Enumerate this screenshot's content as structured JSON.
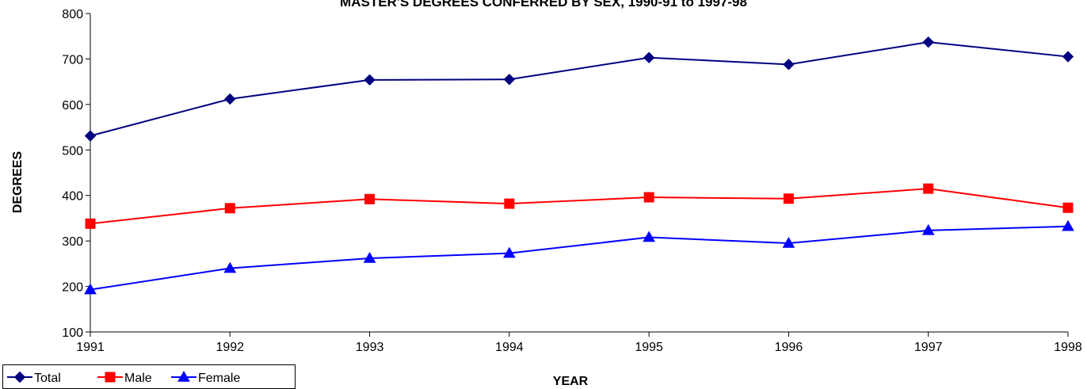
{
  "chart_data": {
    "type": "line",
    "title": "MASTER'S DEGREES CONFERRED BY SEX, 1990-91 to 1997-98",
    "xlabel": "YEAR",
    "ylabel": "DEGREES",
    "x": [
      1991,
      1992,
      1993,
      1994,
      1995,
      1996,
      1997,
      1998
    ],
    "ylim": [
      100,
      800
    ],
    "yticks": [
      100,
      200,
      300,
      400,
      500,
      600,
      700,
      800
    ],
    "grid": false,
    "legend_position": "bottom-left",
    "series": [
      {
        "name": "Total",
        "color": "#000080",
        "marker": "diamond",
        "values": [
          531,
          612,
          654,
          655,
          703,
          688,
          737,
          705
        ]
      },
      {
        "name": "Male",
        "color": "#ff0000",
        "marker": "square",
        "values": [
          338,
          372,
          392,
          382,
          396,
          393,
          415,
          373
        ]
      },
      {
        "name": "Female",
        "color": "#0000ff",
        "marker": "triangle",
        "values": [
          193,
          240,
          262,
          273,
          308,
          295,
          323,
          332
        ]
      }
    ]
  }
}
